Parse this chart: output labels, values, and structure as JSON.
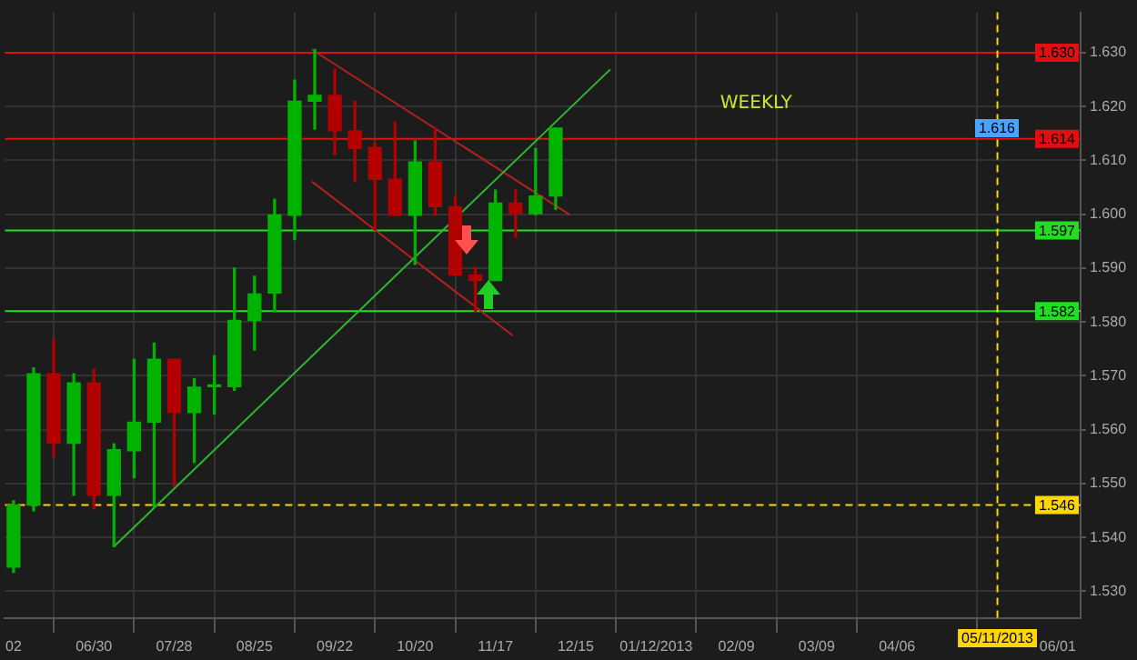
{
  "chart_data": {
    "type": "candlestick",
    "x": [
      "2012-06-02",
      "2012-06-09",
      "2012-06-16",
      "2012-06-23",
      "2012-06-30",
      "2012-07-07",
      "2012-07-14",
      "2012-07-21",
      "2012-07-28",
      "2012-08-04",
      "2012-08-11",
      "2012-08-18",
      "2012-08-25",
      "2012-09-01",
      "2012-09-08",
      "2012-09-15",
      "2012-09-22",
      "2012-09-29",
      "2012-10-06",
      "2012-10-13",
      "2012-10-20",
      "2012-10-27",
      "2012-11-03",
      "2012-11-10",
      "2012-11-17",
      "2012-11-24",
      "2012-12-01",
      "2012-12-08"
    ],
    "ohlc": [
      [
        1.5345,
        1.5468,
        1.5335,
        1.546
      ],
      [
        1.546,
        1.5715,
        1.5449,
        1.5704
      ],
      [
        1.5704,
        1.5768,
        1.555,
        1.5575
      ],
      [
        1.5575,
        1.5704,
        1.5478,
        1.5687
      ],
      [
        1.5687,
        1.5712,
        1.5453,
        1.5478
      ],
      [
        1.5478,
        1.5574,
        1.5383,
        1.5563
      ],
      [
        1.5561,
        1.5731,
        1.5511,
        1.5614
      ],
      [
        1.5614,
        1.5761,
        1.5456,
        1.5731
      ],
      [
        1.5731,
        1.5731,
        1.5495,
        1.5632
      ],
      [
        1.5632,
        1.5695,
        1.5539,
        1.5679
      ],
      [
        1.568,
        1.5737,
        1.5629,
        1.5682
      ],
      [
        1.568,
        1.59,
        1.5673,
        1.5803
      ],
      [
        1.5803,
        1.5885,
        1.5748,
        1.5852
      ],
      [
        1.5854,
        1.6028,
        1.5819,
        1.5999
      ],
      [
        1.5998,
        1.6249,
        1.5953,
        1.621
      ],
      [
        1.621,
        1.6306,
        1.6158,
        1.6221
      ],
      [
        1.6221,
        1.627,
        1.6111,
        1.6155
      ],
      [
        1.6155,
        1.621,
        1.6061,
        1.6122
      ],
      [
        1.6124,
        1.6133,
        1.5971,
        1.6065
      ],
      [
        1.6065,
        1.6171,
        1.5998,
        1.5998
      ],
      [
        1.5998,
        1.6136,
        1.5907,
        1.6097
      ],
      [
        1.6097,
        1.616,
        1.5998,
        1.6014
      ],
      [
        1.6014,
        1.6034,
        1.5887,
        1.5887
      ],
      [
        1.5887,
        1.5902,
        1.5819,
        1.5877
      ],
      [
        1.5877,
        1.6045,
        1.5877,
        1.6021
      ],
      [
        1.6021,
        1.6045,
        1.5957,
        1.6001
      ],
      [
        1.6001,
        1.6122,
        1.5999,
        1.6034
      ],
      [
        1.6034,
        1.616,
        1.6009,
        1.616
      ]
    ],
    "colors": [
      "#00b300",
      "#00b300",
      "#b30000",
      "#00b300",
      "#b30000",
      "#00b300",
      "#00b300",
      "#00b300",
      "#b30000",
      "#00b300",
      "#00b300",
      "#00b300",
      "#00b300",
      "#00b300",
      "#00b300",
      "#00b300",
      "#b30000",
      "#b30000",
      "#b30000",
      "#b30000",
      "#00b300",
      "#b30000",
      "#b30000",
      "#b30000",
      "#00b300",
      "#b30000",
      "#00b300",
      "#00b300"
    ],
    "series": [
      {
        "type": "line",
        "color": "#2db82d",
        "x": [
          "2012-07-07",
          "2012-12-27"
        ],
        "values": [
          1.5383,
          1.6269
        ]
      },
      {
        "type": "line",
        "color": "#b32020",
        "x": [
          "2012-09-14",
          "2012-12-13"
        ],
        "values": [
          1.6306,
          1.5999
        ]
      },
      {
        "type": "line",
        "color": "#b32020",
        "x": [
          "2012-09-14",
          "2012-11-23"
        ],
        "values": [
          1.6061,
          1.5775
        ]
      }
    ],
    "marker": "none",
    "xlim": [
      "2012-05-30",
      "2013-06-09"
    ],
    "xticks": [
      {
        "value": "2012-06-02",
        "label": "02"
      },
      {
        "value": "2012-06-30",
        "label": "06/30"
      },
      {
        "value": "2012-07-28",
        "label": "07/28"
      },
      {
        "value": "2012-08-25",
        "label": "08/25"
      },
      {
        "value": "2012-09-22",
        "label": "09/22"
      },
      {
        "value": "2012-10-20",
        "label": "10/20"
      },
      {
        "value": "2012-11-17",
        "label": "11/17"
      },
      {
        "value": "2012-12-15",
        "label": "12/15"
      },
      {
        "value": "2013-01-12",
        "label": "01/12/2013"
      },
      {
        "value": "2013-02-09",
        "label": "02/09"
      },
      {
        "value": "2013-03-09",
        "label": "03/09"
      },
      {
        "value": "2013-04-06",
        "label": "04/06"
      },
      {
        "value": "2013-06-01",
        "label": "06/01"
      }
    ],
    "ylim": [
      1.525,
      1.6375
    ],
    "yticks": [
      {
        "value": 1.53,
        "label": "1.530"
      },
      {
        "value": 1.54,
        "label": "1.540"
      },
      {
        "value": 1.55,
        "label": "1.550"
      },
      {
        "value": 1.56,
        "label": "1.560"
      },
      {
        "value": 1.57,
        "label": "1.570"
      },
      {
        "value": 1.58,
        "label": "1.580"
      },
      {
        "value": 1.59,
        "label": "1.590"
      },
      {
        "value": 1.6,
        "label": "1.600"
      },
      {
        "value": 1.61,
        "label": "1.610"
      },
      {
        "value": 1.62,
        "label": "1.620"
      },
      {
        "value": 1.63,
        "label": "1.630"
      }
    ],
    "grid": true,
    "ref_lines": [
      {
        "axis": "y",
        "value": 1.63,
        "label": "1.630",
        "color": "#e01010"
      },
      {
        "axis": "y",
        "value": 1.614,
        "label": "1.614",
        "color": "#e01010"
      },
      {
        "axis": "y",
        "value": 1.597,
        "label": "1.597",
        "color": "#22dd22"
      },
      {
        "axis": "y",
        "value": 1.582,
        "label": "1.582",
        "color": "#22dd22"
      },
      {
        "axis": "y",
        "value": 1.546,
        "label": "1.546",
        "color": "#ffd700",
        "line_style": "dashed"
      },
      {
        "axis": "x",
        "value": "2013-05-11",
        "label": "05/11/2013",
        "color": "#ffd700",
        "line_style": "dashed"
      }
    ],
    "annotations": [
      "WEEKLY",
      {
        "text": "1.616",
        "y": 1.616
      }
    ]
  }
}
